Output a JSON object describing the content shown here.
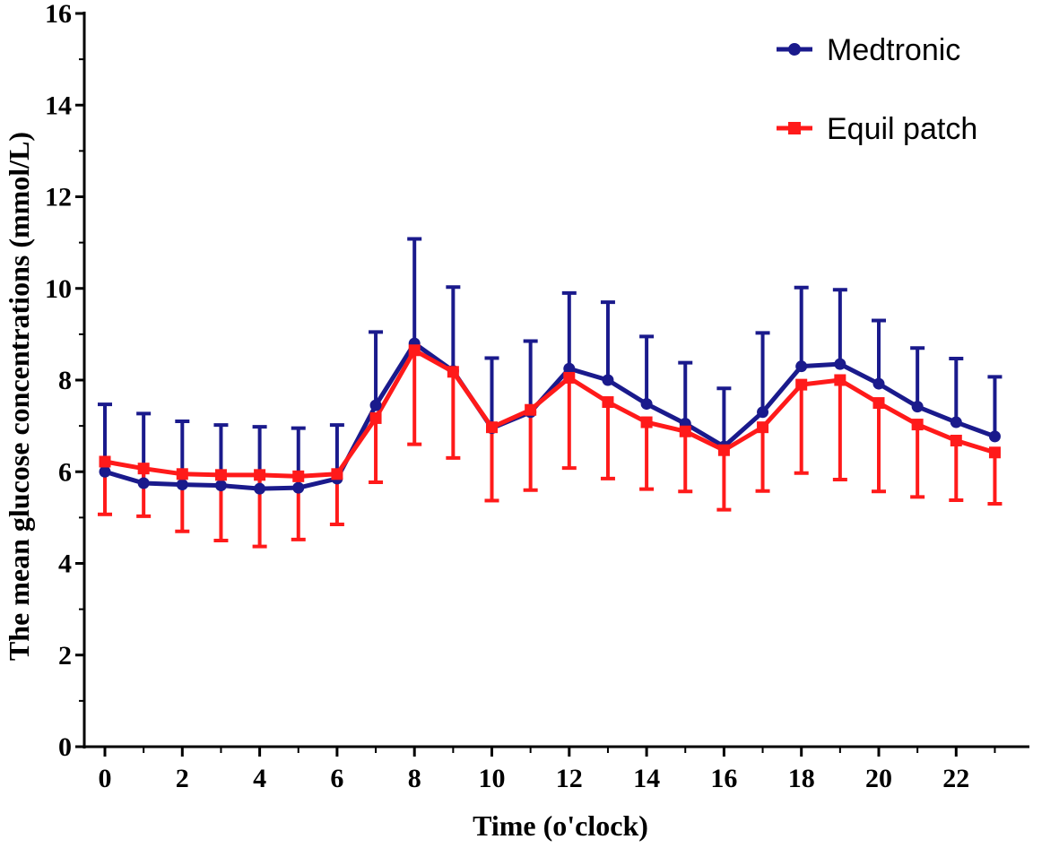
{
  "chart_data": {
    "type": "line",
    "xlabel": "Time (o'clock)",
    "ylabel": "The mean glucose concentrations (mmol/L)",
    "xlim": [
      0,
      24
    ],
    "ylim": [
      0,
      16
    ],
    "x_ticks": [
      0,
      2,
      4,
      6,
      8,
      10,
      12,
      14,
      16,
      18,
      20,
      22
    ],
    "y_ticks": [
      0,
      2,
      4,
      6,
      8,
      10,
      12,
      14,
      16
    ],
    "grid": false,
    "legend_position": "top-right",
    "x": [
      0,
      1,
      2,
      3,
      4,
      5,
      6,
      7,
      8,
      9,
      10,
      11,
      12,
      13,
      14,
      15,
      16,
      17,
      18,
      19,
      20,
      21,
      22,
      23
    ],
    "series": [
      {
        "name": "Medtronic",
        "color": "#1a1a8c",
        "marker": "circle",
        "error_direction": "up",
        "values": [
          6.0,
          5.75,
          5.72,
          5.7,
          5.63,
          5.65,
          5.85,
          7.45,
          8.8,
          8.2,
          6.95,
          7.3,
          8.25,
          8.0,
          7.48,
          7.05,
          6.55,
          7.3,
          8.3,
          8.35,
          7.92,
          7.42,
          7.08,
          6.77
        ],
        "error_upper": [
          7.47,
          7.27,
          7.1,
          7.02,
          6.98,
          6.95,
          7.02,
          9.05,
          11.08,
          10.03,
          8.48,
          8.85,
          9.9,
          9.7,
          8.95,
          8.38,
          7.82,
          9.03,
          10.02,
          9.97,
          9.3,
          8.7,
          8.47,
          8.07
        ]
      },
      {
        "name": "Equil patch",
        "color": "#ff1a1a",
        "marker": "square",
        "error_direction": "down",
        "values": [
          6.22,
          6.07,
          5.95,
          5.93,
          5.93,
          5.9,
          5.95,
          7.17,
          8.65,
          8.18,
          6.97,
          7.35,
          8.05,
          7.52,
          7.08,
          6.88,
          6.47,
          6.97,
          7.9,
          8.0,
          7.5,
          7.03,
          6.68,
          6.42
        ],
        "error_lower": [
          5.07,
          5.03,
          4.7,
          4.5,
          4.37,
          4.52,
          4.85,
          5.77,
          6.6,
          6.3,
          5.37,
          5.6,
          6.08,
          5.85,
          5.62,
          5.57,
          5.17,
          5.58,
          5.97,
          5.83,
          5.57,
          5.45,
          5.38,
          5.3
        ]
      }
    ]
  }
}
